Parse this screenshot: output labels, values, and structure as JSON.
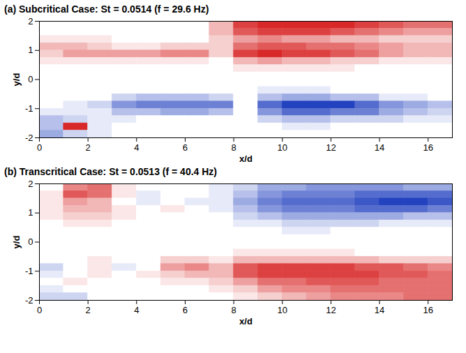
{
  "chart_data": [
    {
      "type": "heatmap",
      "title": "(a) Subcritical Case: St = 0.0514 (f = 29.6 Hz)",
      "x_label": "x/d",
      "y_label": "y/d",
      "xlim": [
        0,
        17
      ],
      "ylim": [
        -2,
        2
      ],
      "xticks": [
        0,
        2,
        4,
        6,
        8,
        10,
        12,
        14,
        16
      ],
      "yticks": [
        -2,
        -1,
        0,
        1,
        2
      ],
      "color_range": [
        -1,
        1
      ],
      "x": [
        0.5,
        1.5,
        2.5,
        3.5,
        4.5,
        5.5,
        6.5,
        7.5,
        8.5,
        9.5,
        10.5,
        11.5,
        12.5,
        13.5,
        14.5,
        15.5,
        16.5
      ],
      "y": [
        1.875,
        1.625,
        1.375,
        1.125,
        0.875,
        0.625,
        0.375,
        0.125,
        -0.125,
        -0.375,
        -0.625,
        -0.875,
        -1.125,
        -1.375,
        -1.625,
        -1.875
      ],
      "values": [
        [
          0,
          0,
          0,
          0,
          0,
          0,
          0,
          0.3,
          0.8,
          0.9,
          0.9,
          0.9,
          0.9,
          0.8,
          0.7,
          0.6,
          0.6
        ],
        [
          0,
          0,
          0,
          0,
          0,
          0,
          0,
          0.3,
          0.7,
          0.8,
          0.8,
          0.8,
          0.7,
          0.6,
          0.5,
          0.4,
          0.4
        ],
        [
          0.1,
          0.1,
          0.1,
          0,
          0,
          0,
          0,
          0.2,
          0.4,
          0.5,
          0.4,
          0.4,
          0.3,
          0.3,
          0.2,
          0.2,
          0.2
        ],
        [
          0.3,
          0.3,
          0.2,
          0.1,
          0.1,
          0.2,
          0.2,
          0.2,
          0.6,
          0.7,
          0.7,
          0.6,
          0.6,
          0.5,
          0.4,
          0.3,
          0.3
        ],
        [
          0.2,
          0.4,
          0.4,
          0.4,
          0.4,
          0.5,
          0.5,
          0.2,
          0.8,
          0.9,
          0.8,
          0.8,
          0.7,
          0.6,
          0.4,
          0.3,
          0.3
        ],
        [
          0.1,
          0.1,
          0.1,
          0.1,
          0.1,
          0.1,
          0.1,
          0,
          0.3,
          0.4,
          0.3,
          0.3,
          0.2,
          0.2,
          0.1,
          0.1,
          0.1
        ],
        [
          0,
          0,
          0,
          0,
          0,
          0,
          0,
          0,
          0.1,
          0.1,
          0.1,
          0.1,
          0.1,
          0,
          0,
          0,
          0
        ],
        [
          0,
          0,
          0,
          0,
          0,
          0,
          0,
          0,
          0,
          0,
          0,
          0,
          0,
          0,
          0,
          0,
          0
        ],
        [
          0,
          0,
          0,
          0,
          0,
          0,
          0,
          0,
          0,
          0,
          0,
          0,
          0,
          0,
          0,
          0,
          0
        ],
        [
          0,
          0,
          0,
          0,
          0,
          0,
          0,
          0,
          0,
          -0.1,
          -0.1,
          -0.1,
          0,
          0,
          0,
          0,
          0
        ],
        [
          0,
          0,
          0,
          -0.2,
          -0.3,
          -0.3,
          -0.3,
          -0.2,
          0,
          -0.3,
          -0.4,
          -0.4,
          -0.3,
          -0.3,
          -0.1,
          -0.1,
          0
        ],
        [
          0,
          -0.1,
          -0.2,
          -0.5,
          -0.6,
          -0.6,
          -0.6,
          -0.6,
          0,
          -0.7,
          -0.9,
          -0.9,
          -0.9,
          -0.7,
          -0.5,
          -0.4,
          -0.3
        ],
        [
          -0.1,
          -0.1,
          -0.1,
          -0.3,
          -0.3,
          -0.4,
          -0.4,
          -0.3,
          0,
          -0.5,
          -0.7,
          -0.7,
          -0.6,
          -0.6,
          -0.4,
          -0.3,
          -0.2
        ],
        [
          -0.3,
          -0.2,
          -0.1,
          -0.1,
          0,
          0,
          0,
          0,
          0,
          -0.2,
          -0.3,
          -0.3,
          -0.2,
          -0.2,
          -0.2,
          -0.1,
          -0.1
        ],
        [
          -0.3,
          0.9,
          -0.1,
          0,
          0,
          0,
          0,
          0,
          0,
          0,
          -0.1,
          -0.1,
          0,
          0,
          0,
          0,
          0
        ],
        [
          -0.4,
          -0.2,
          -0.1,
          0,
          0,
          0,
          0,
          0,
          0,
          0,
          0,
          0,
          0,
          0,
          0,
          0,
          0
        ]
      ]
    },
    {
      "type": "heatmap",
      "title": "(b) Transcritical Case: St = 0.0513 (f = 40.4 Hz)",
      "x_label": "x/d",
      "y_label": "y/d",
      "xlim": [
        0,
        17
      ],
      "ylim": [
        -2,
        2
      ],
      "xticks": [
        0,
        2,
        4,
        6,
        8,
        10,
        12,
        14,
        16
      ],
      "yticks": [
        -2,
        -1,
        0,
        1,
        2
      ],
      "color_range": [
        -1,
        1
      ],
      "x": [
        0.5,
        1.5,
        2.5,
        3.5,
        4.5,
        5.5,
        6.5,
        7.5,
        8.5,
        9.5,
        10.5,
        11.5,
        12.5,
        13.5,
        14.5,
        15.5,
        16.5
      ],
      "y": [
        1.875,
        1.625,
        1.375,
        1.125,
        0.875,
        0.625,
        0.375,
        0.125,
        -0.125,
        -0.375,
        -0.625,
        -0.875,
        -1.125,
        -1.375,
        -1.625,
        -1.875
      ],
      "values": [
        [
          0,
          0.5,
          0.6,
          0.1,
          0,
          0,
          0,
          -0.1,
          -0.2,
          -0.4,
          -0.4,
          -0.5,
          -0.5,
          -0.5,
          -0.5,
          -0.4,
          -0.4
        ],
        [
          0.1,
          0.7,
          0.6,
          0.1,
          -0.1,
          0,
          0,
          -0.1,
          -0.3,
          -0.5,
          -0.6,
          -0.6,
          -0.6,
          -0.7,
          -0.7,
          -0.7,
          -0.7
        ],
        [
          0.1,
          0.4,
          0.3,
          0,
          -0.1,
          0,
          -0.1,
          -0.1,
          -0.4,
          -0.6,
          -0.7,
          -0.7,
          -0.7,
          -0.8,
          -0.9,
          -0.9,
          -0.8
        ],
        [
          0.1,
          0.3,
          0.3,
          0.1,
          0,
          0.1,
          0,
          -0.1,
          -0.3,
          -0.5,
          -0.6,
          -0.6,
          -0.6,
          -0.7,
          -0.7,
          -0.7,
          -0.6
        ],
        [
          0.1,
          0.2,
          0.2,
          0.1,
          0,
          0,
          0,
          0,
          -0.2,
          -0.3,
          -0.4,
          -0.4,
          -0.4,
          -0.4,
          -0.4,
          -0.3,
          -0.3
        ],
        [
          0,
          0.1,
          0.1,
          0,
          0,
          0,
          0,
          0,
          -0.1,
          -0.1,
          -0.2,
          -0.2,
          -0.2,
          -0.2,
          -0.1,
          -0.1,
          -0.1
        ],
        [
          0,
          0,
          0,
          0,
          0,
          0,
          0,
          0,
          0,
          0,
          -0.1,
          -0.1,
          0,
          0,
          0,
          0,
          0
        ],
        [
          0,
          0,
          0,
          0,
          0,
          0,
          0,
          0,
          0,
          0,
          0,
          0,
          0,
          0,
          0,
          0,
          0
        ],
        [
          0,
          0,
          0,
          0,
          0,
          0,
          0,
          0,
          0,
          0,
          0,
          0,
          0,
          0,
          0,
          0,
          0
        ],
        [
          0,
          0,
          0,
          0,
          0,
          0,
          0,
          0,
          0.1,
          0.1,
          0.1,
          0.1,
          0.1,
          0,
          0,
          0,
          0
        ],
        [
          0,
          0,
          0.1,
          0,
          0,
          0.2,
          0.2,
          0.1,
          0.3,
          0.3,
          0.3,
          0.3,
          0.3,
          0.3,
          0.2,
          0.2,
          0.2
        ],
        [
          -0.2,
          0,
          0.1,
          -0.1,
          0,
          0.4,
          0.5,
          0.3,
          0.7,
          0.8,
          0.8,
          0.8,
          0.8,
          0.7,
          0.7,
          0.6,
          0.5
        ],
        [
          -0.1,
          0,
          0.1,
          0,
          0.1,
          0.2,
          0.3,
          0.3,
          0.7,
          0.8,
          0.8,
          0.8,
          0.8,
          0.8,
          0.7,
          0.7,
          0.6
        ],
        [
          0,
          0.1,
          0,
          0,
          0,
          0.1,
          0.1,
          0.2,
          0.4,
          0.6,
          0.6,
          0.7,
          0.7,
          0.7,
          0.6,
          0.6,
          0.6
        ],
        [
          -0.1,
          0,
          0,
          0,
          0,
          0,
          0,
          0.1,
          0.2,
          0.4,
          0.5,
          0.5,
          0.6,
          0.6,
          0.6,
          0.6,
          0.6
        ],
        [
          -0.2,
          -0.2,
          0,
          0,
          0,
          0,
          0,
          0,
          0.1,
          0.2,
          0.3,
          0.4,
          0.5,
          0.5,
          0.5,
          0.6,
          0.6
        ]
      ]
    }
  ]
}
